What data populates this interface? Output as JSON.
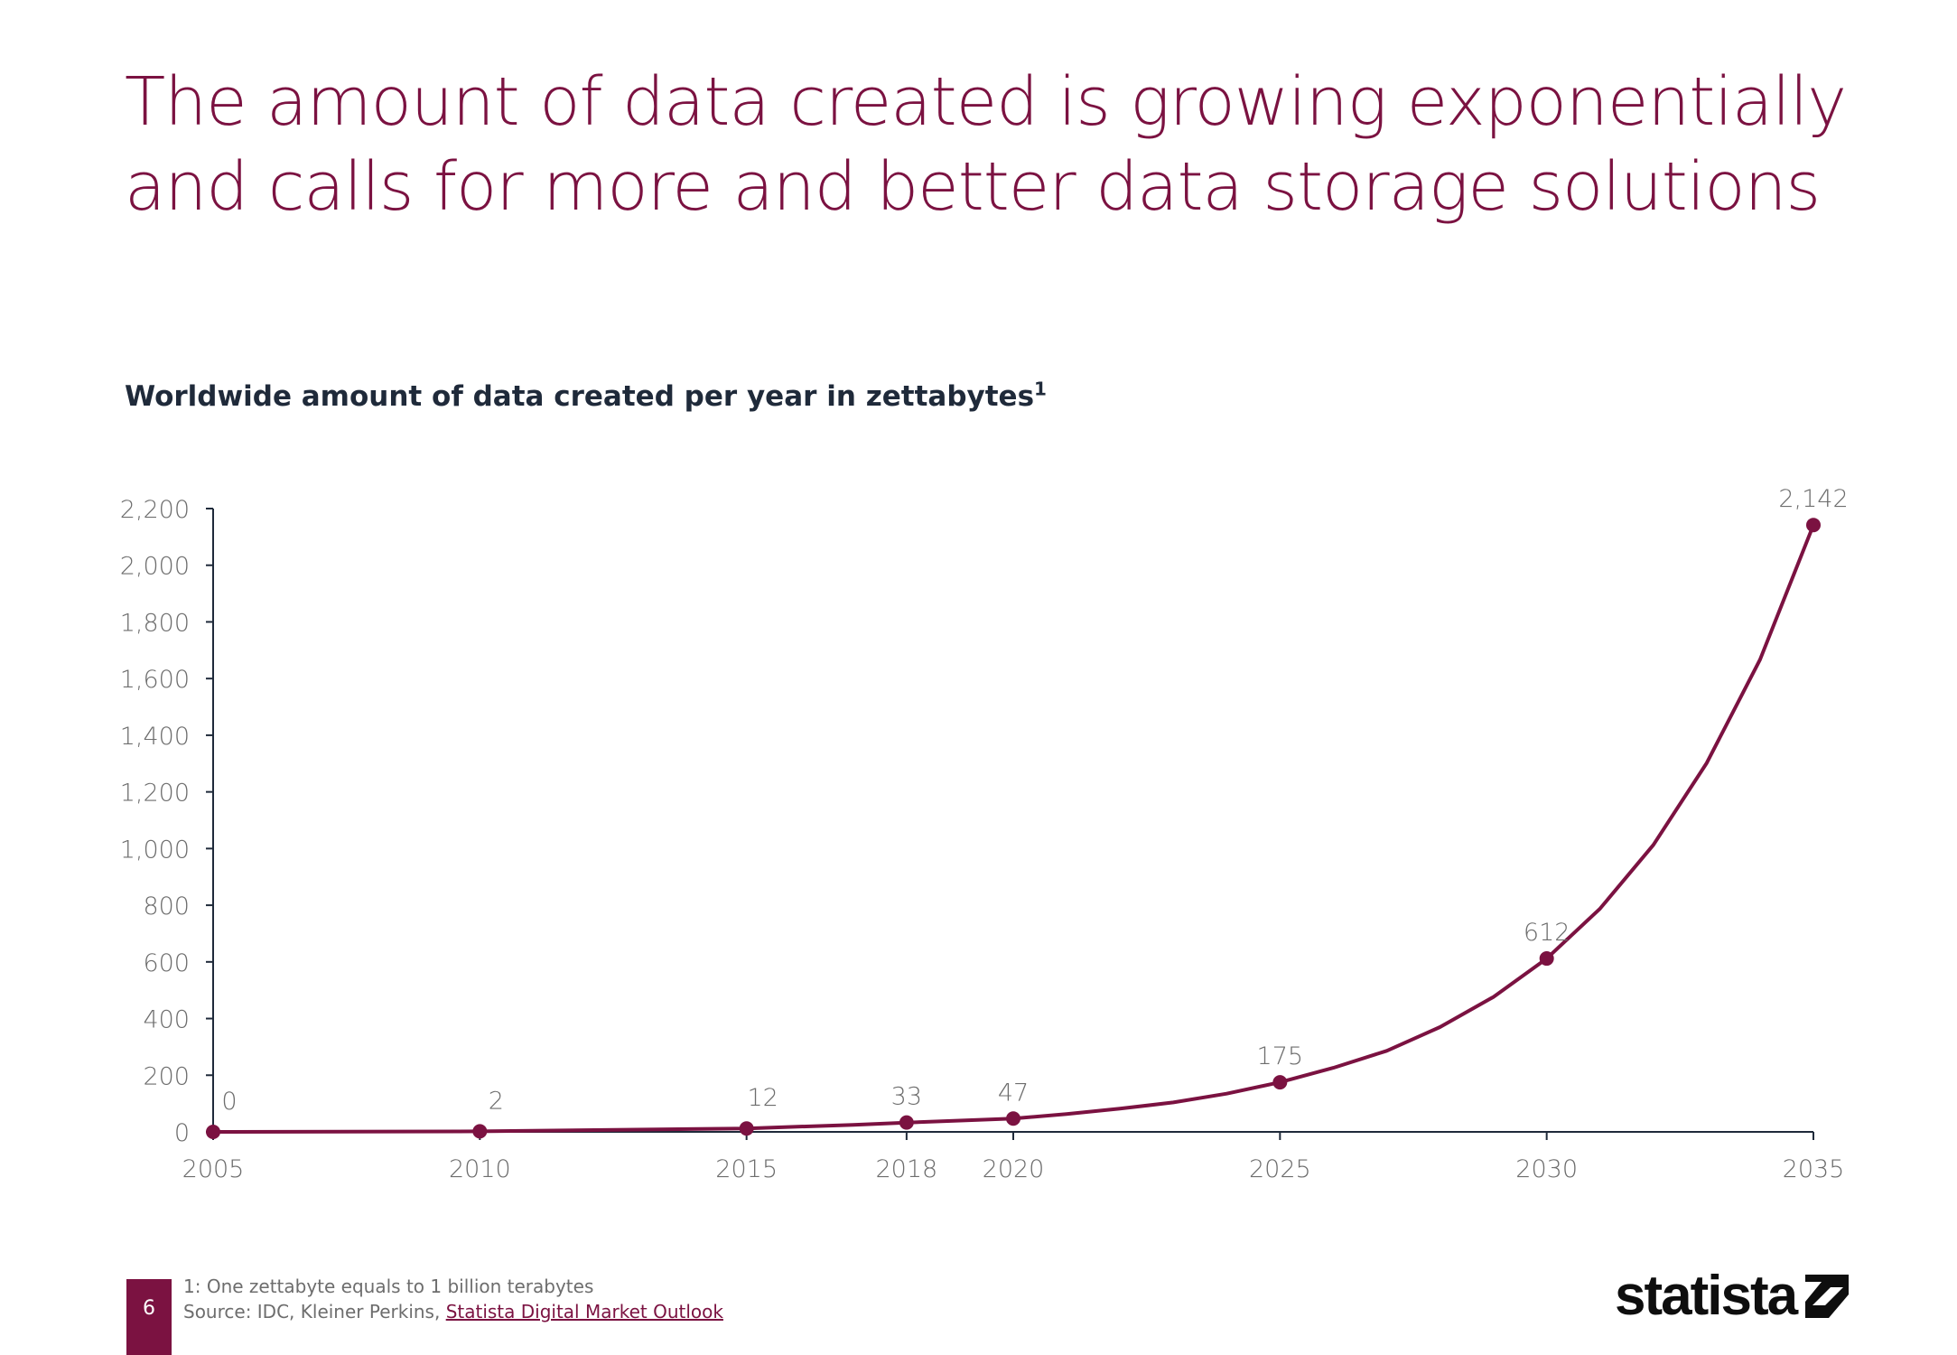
{
  "header": {
    "title_line1": "The amount of data created is growing exponentially",
    "title_line2": "and calls for more and better data storage solutions"
  },
  "colors": {
    "accent": "#7b1241",
    "axis": "#1f2a3a",
    "label": "#6d6d6d"
  },
  "chart_data": {
    "type": "line",
    "title": "Worldwide amount of data created per year in zettabytes",
    "title_sup": "1",
    "xlabel": "",
    "ylabel": "",
    "xlim": [
      2005,
      2035
    ],
    "ylim": [
      0,
      2200
    ],
    "yticks": [
      0,
      200,
      400,
      600,
      800,
      1000,
      1200,
      1400,
      1600,
      1800,
      2000,
      2200
    ],
    "ytick_labels": [
      "0",
      "200",
      "400",
      "600",
      "800",
      "1,000",
      "1,200",
      "1,400",
      "1,600",
      "1,800",
      "2,000",
      "2,200"
    ],
    "xticks": [
      2005,
      2010,
      2015,
      2018,
      2020,
      2025,
      2030,
      2035
    ],
    "xtick_labels": [
      "2005",
      "2010",
      "2015",
      "2018",
      "2020",
      "2025",
      "2030",
      "2035"
    ],
    "grid": false,
    "series": [
      {
        "x": [
          2005,
          2010,
          2015,
          2017,
          2018,
          2019,
          2020,
          2021,
          2022,
          2023,
          2024,
          2025,
          2026,
          2027,
          2028,
          2029,
          2030,
          2031,
          2032,
          2033,
          2034,
          2035
        ],
        "y": [
          0,
          2,
          12,
          25,
          33,
          40,
          47,
          63,
          82,
          104,
          135,
          175,
          226,
          286,
          370,
          476,
          612,
          788,
          1013,
          1302,
          1667,
          2142
        ]
      }
    ],
    "markers": [
      {
        "x": 2005,
        "y": 0,
        "label": "0"
      },
      {
        "x": 2010,
        "y": 2,
        "label": "2"
      },
      {
        "x": 2015,
        "y": 12,
        "label": "12"
      },
      {
        "x": 2018,
        "y": 33,
        "label": "33"
      },
      {
        "x": 2020,
        "y": 47,
        "label": "47"
      },
      {
        "x": 2025,
        "y": 175,
        "label": "175"
      },
      {
        "x": 2030,
        "y": 612,
        "label": "612"
      },
      {
        "x": 2035,
        "y": 2142,
        "label": "2,142"
      }
    ]
  },
  "footer": {
    "page_number": "6",
    "note": "1: One zettabyte equals to 1 billion terabytes",
    "source_prefix": "Source: IDC, Kleiner Perkins, ",
    "source_link": "Statista Digital Market Outlook",
    "logo_text": "statista"
  }
}
